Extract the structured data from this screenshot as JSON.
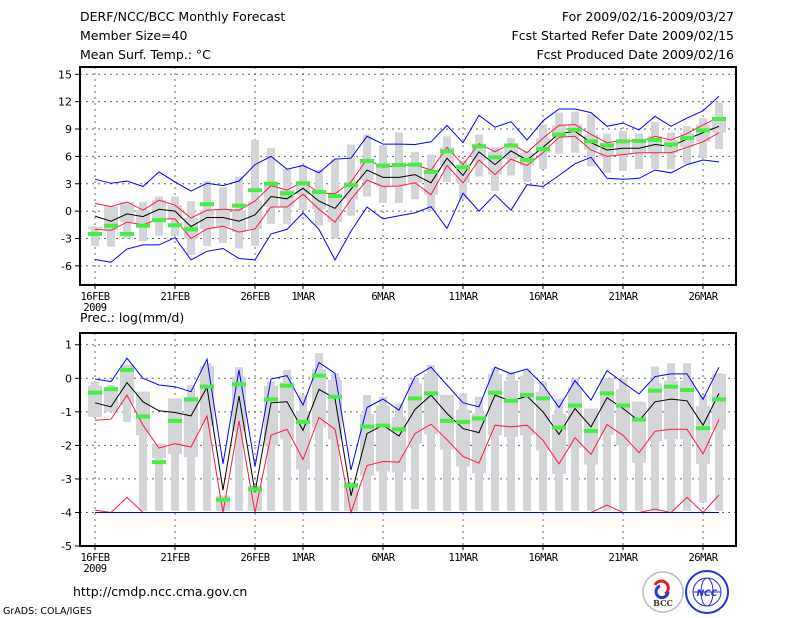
{
  "header": {
    "title": "DERF/NCC/BCC Monthly Forecast",
    "member_size": "Member Size=40",
    "variable": "Mean Surf. Temp.: °C",
    "period": "For 2009/02/16-2009/03/27",
    "start_date": "Fcst Started Refer Date 2009/02/15",
    "produced_date": "Fcst Produced Date 2009/02/16"
  },
  "footer": {
    "url": "http://cmdp.ncc.cma.gov.cn",
    "credit": "GrADS: COLA/IGES",
    "logos": [
      "BCC",
      "NCC"
    ]
  },
  "colors": {
    "max_min": "#0000ff",
    "spread": "#ff1a40",
    "mean": "#000000",
    "observed": "#44ee44",
    "ensemble": "#d4d5d9"
  },
  "chart_data": [
    {
      "type": "line",
      "title": "Mean Surf. Temp.: °C",
      "xlabel": "",
      "ylabel": "",
      "ylim": [
        -8.1,
        15.8
      ],
      "yticks": [
        "-6",
        "-3",
        "0",
        "3",
        "6",
        "9",
        "12",
        "15"
      ],
      "xtick_days": [
        0,
        5,
        10,
        13,
        18,
        23,
        28,
        33,
        38
      ],
      "xtick_labels": [
        "16FEB",
        "21FEB",
        "26FEB",
        "1MAR",
        "6MAR",
        "11MAR",
        "16MAR",
        "21MAR",
        "26MAR"
      ],
      "xtick_year": "2009",
      "grid": true,
      "series": [
        {
          "name": "max",
          "color": "#0000ff",
          "values": [
            3.5,
            3.05,
            3.3,
            2.7,
            4.3,
            3.2,
            2.2,
            3.05,
            2.8,
            3.3,
            5.1,
            6.0,
            4.6,
            5.0,
            4.2,
            5.7,
            5.8,
            8.2,
            7.35,
            7.35,
            7.3,
            7.6,
            9.4,
            7.5,
            10.5,
            9.2,
            9.8,
            7.8,
            9.9,
            11.2,
            11.2,
            10.8,
            9.3,
            9.65,
            8.9,
            10.4,
            9.3,
            10.2,
            11.0,
            12.6
          ]
        },
        {
          "name": "upper",
          "color": "#ff1a40",
          "values": [
            0.85,
            0.5,
            1.0,
            0.1,
            1.2,
            0.65,
            -0.75,
            0.1,
            0.2,
            0.1,
            1.1,
            2.8,
            2.3,
            3.2,
            2.0,
            1.9,
            3.2,
            5.7,
            4.8,
            5.0,
            5.1,
            4.5,
            7.0,
            5.1,
            7.4,
            6.5,
            7.4,
            6.4,
            8.0,
            9.4,
            9.5,
            8.4,
            7.5,
            7.8,
            7.6,
            8.2,
            7.8,
            8.5,
            9.45,
            10.3
          ]
        },
        {
          "name": "mean",
          "color": "#000000",
          "values": [
            -0.55,
            -1.1,
            -0.3,
            -0.6,
            0.2,
            0.0,
            -1.7,
            -0.7,
            -0.7,
            -1.1,
            -0.4,
            1.6,
            1.35,
            2.5,
            1.1,
            0.3,
            2.4,
            4.5,
            3.7,
            3.7,
            4.0,
            3.1,
            5.8,
            3.9,
            6.5,
            5.1,
            6.6,
            5.6,
            7.0,
            8.5,
            8.75,
            7.5,
            6.7,
            6.9,
            6.9,
            7.3,
            7.1,
            7.9,
            8.6,
            9.3
          ]
        },
        {
          "name": "lower",
          "color": "#ff1a40",
          "values": [
            -2.0,
            -2.1,
            -1.2,
            -1.5,
            -0.85,
            -0.85,
            -3.0,
            -1.95,
            -1.65,
            -2.3,
            -1.95,
            0.45,
            0.45,
            1.85,
            0.2,
            -1.2,
            1.3,
            3.4,
            2.7,
            2.75,
            3.1,
            1.8,
            5.0,
            3.1,
            5.6,
            4.0,
            5.7,
            5.0,
            6.4,
            8.1,
            8.2,
            6.7,
            6.0,
            6.2,
            6.4,
            6.4,
            6.4,
            7.0,
            7.6,
            8.6
          ]
        },
        {
          "name": "min",
          "color": "#0000ff",
          "values": [
            -5.3,
            -5.6,
            -4.15,
            -3.7,
            -3.7,
            -2.9,
            -5.35,
            -4.4,
            -4.1,
            -5.2,
            -5.35,
            -2.5,
            -2.0,
            -0.2,
            -2.0,
            -5.35,
            -2.2,
            0.45,
            -0.85,
            -0.5,
            -0.2,
            0.5,
            -1.9,
            1.95,
            0.0,
            1.8,
            0.1,
            2.9,
            2.7,
            3.9,
            5.2,
            5.9,
            3.6,
            3.5,
            3.6,
            4.5,
            4.2,
            5.1,
            5.6,
            5.4
          ]
        },
        {
          "name": "observed",
          "color": "#44ee44",
          "values": [
            -2.5,
            -1.6,
            -2.5,
            -1.6,
            -1.0,
            -1.55,
            -2.0,
            0.75,
            null,
            0.6,
            2.3,
            3.0,
            1.95,
            3.05,
            2.1,
            1.65,
            2.85,
            5.5,
            5.0,
            5.05,
            5.1,
            4.3,
            6.55,
            4.8,
            7.1,
            5.9,
            7.2,
            5.6,
            6.8,
            8.4,
            8.9,
            7.65,
            7.2,
            7.65,
            7.7,
            7.8,
            7.3,
            8.0,
            8.85,
            10.1
          ]
        }
      ],
      "ensemble_range": {
        "low": [
          -3.8,
          -3.9,
          -3.0,
          -3.3,
          -2.7,
          -2.7,
          -4.8,
          -3.8,
          -3.5,
          -4.1,
          -3.8,
          -1.4,
          -1.4,
          0.1,
          -1.6,
          -3.0,
          -0.5,
          1.6,
          0.9,
          0.9,
          1.3,
          0.0,
          3.2,
          1.3,
          3.8,
          2.2,
          3.9,
          3.2,
          4.6,
          6.3,
          6.4,
          4.9,
          4.2,
          4.4,
          4.6,
          4.6,
          4.6,
          5.2,
          5.8,
          6.8
        ],
        "high": [
          -1.7,
          0.5,
          1.0,
          1.0,
          1.6,
          1.6,
          1.1,
          3.3,
          2.6,
          3.8,
          7.8,
          6.9,
          4.6,
          5.1,
          4.5,
          5.6,
          7.3,
          8.4,
          7.2,
          8.6,
          6.5,
          6.2,
          8.2,
          5.5,
          8.4,
          7.0,
          8.0,
          6.6,
          9.5,
          10.8,
          10.9,
          10.6,
          8.5,
          8.8,
          8.5,
          9.8,
          8.6,
          9.3,
          10.2,
          11.9
        ]
      }
    },
    {
      "type": "line",
      "title": "Prec.: log(mm/d)",
      "xlabel": "",
      "ylabel": "",
      "ylim": [
        -5,
        1.35
      ],
      "yticks": [
        "-5",
        "-4",
        "-3",
        "-2",
        "-1",
        "0",
        "1"
      ],
      "xtick_days": [
        0,
        5,
        10,
        13,
        18,
        23,
        28,
        33,
        38
      ],
      "xtick_labels": [
        "16FEB",
        "21FEB",
        "26FEB",
        "1MAR",
        "6MAR",
        "11MAR",
        "16MAR",
        "21MAR",
        "26MAR"
      ],
      "xtick_year": "2009",
      "grid": true,
      "series": [
        {
          "name": "max",
          "color": "#0000ff",
          "values": [
            -0.02,
            -0.1,
            0.6,
            0.0,
            -0.2,
            -0.25,
            -0.4,
            0.57,
            -2.55,
            0.25,
            -2.63,
            -0.02,
            0.08,
            -0.8,
            0.47,
            0.15,
            -2.73,
            -0.87,
            -0.62,
            -0.95,
            0.05,
            0.33,
            -0.2,
            -0.73,
            -0.85,
            0.33,
            0.13,
            0.28,
            -0.2,
            -0.87,
            -0.07,
            -0.65,
            0.23,
            -0.13,
            -0.47,
            0.05,
            0.13,
            0.13,
            -0.63,
            0.33
          ]
        },
        {
          "name": "mean",
          "color": "#000000",
          "values": [
            -0.73,
            -0.85,
            -0.13,
            -0.7,
            -0.97,
            -1.02,
            -1.12,
            -0.27,
            -3.33,
            -0.53,
            -3.4,
            -0.73,
            -0.7,
            -1.55,
            -0.33,
            -0.6,
            -3.5,
            -1.65,
            -1.4,
            -1.72,
            -0.93,
            -0.5,
            -1.05,
            -1.5,
            -1.62,
            -0.5,
            -0.68,
            -0.53,
            -1.0,
            -1.67,
            -0.9,
            -1.45,
            -0.58,
            -0.9,
            -1.27,
            -0.7,
            -0.62,
            -0.67,
            -1.4,
            -0.45
          ]
        },
        {
          "name": "upper-red",
          "color": "#ff1a40",
          "values": [
            -1.25,
            -1.22,
            -0.5,
            -1.4,
            -2.08,
            -1.95,
            -2.05,
            -1.12,
            -4.0,
            -1.27,
            -4.0,
            -1.7,
            -1.52,
            -2.42,
            -1.17,
            -1.52,
            -4.0,
            -2.6,
            -2.48,
            -2.5,
            -1.65,
            -1.37,
            -1.83,
            -2.33,
            -2.53,
            -1.4,
            -1.45,
            -1.4,
            -1.85,
            -2.55,
            -1.77,
            -2.27,
            -1.38,
            -1.7,
            -2.22,
            -1.58,
            -1.52,
            -1.52,
            -2.25,
            -1.23
          ]
        },
        {
          "name": "lower-red",
          "color": "#ff1a40",
          "values": [
            -3.93,
            -4.0,
            -3.55,
            -4.0,
            -4.0,
            -4.0,
            -4.0,
            -4.0,
            -4.0,
            -4.0,
            -4.0,
            -4.0,
            -4.0,
            -4.0,
            -4.0,
            -4.0,
            -4.0,
            -4.0,
            -4.0,
            -4.0,
            -4.0,
            -4.0,
            -4.0,
            -4.0,
            -4.0,
            -4.0,
            -4.0,
            -4.0,
            -4.0,
            -4.0,
            -4.0,
            -4.0,
            -3.78,
            -4.0,
            -4.0,
            -3.9,
            -4.0,
            -3.55,
            -4.0,
            -3.48
          ]
        },
        {
          "name": "min",
          "color": "#0000ff",
          "values": [
            -4,
            -4,
            -4,
            -4,
            -4,
            -4,
            -4,
            -4,
            -4,
            -4,
            -4,
            -4,
            -4,
            -4,
            -4,
            -4,
            -4,
            -4,
            -4,
            -4,
            -4,
            -4,
            -4,
            -4,
            -4,
            -4,
            -4,
            -4,
            -4,
            -4,
            -4,
            -4,
            -4,
            -4,
            -4,
            -4,
            -4,
            -4,
            -4,
            -4
          ]
        },
        {
          "name": "observed",
          "color": "#44ee44",
          "values": [
            -0.43,
            -0.32,
            0.25,
            -1.14,
            -2.5,
            -1.27,
            -0.63,
            -0.25,
            -3.62,
            -0.18,
            -3.31,
            -0.63,
            -0.22,
            -1.3,
            0.08,
            -0.55,
            -3.2,
            -1.44,
            -1.41,
            -1.52,
            -0.6,
            -0.45,
            -1.27,
            -1.3,
            -1.2,
            -0.43,
            -0.67,
            -0.5,
            -0.6,
            -1.47,
            -0.81,
            -1.57,
            -0.45,
            -0.81,
            -1.23,
            -0.37,
            -0.25,
            -0.35,
            -1.49,
            -0.63
          ]
        }
      ],
      "ensemble_range": {
        "low": [
          -1.15,
          -1.0,
          -1.3,
          -3.95,
          -3.95,
          -3.95,
          -3.95,
          -3.95,
          -3.95,
          -3.95,
          -3.95,
          -3.95,
          -3.95,
          -3.95,
          -3.95,
          -3.95,
          -3.95,
          -3.95,
          -3.95,
          -3.95,
          -3.9,
          -3.95,
          -3.95,
          -3.95,
          -3.95,
          -3.95,
          -3.95,
          -3.95,
          -3.95,
          -3.95,
          -3.95,
          -3.95,
          -3.95,
          -3.95,
          -3.95,
          -3.95,
          -3.95,
          -3.95,
          -3.7,
          -3.95
        ],
        "high": [
          -0.1,
          -0.2,
          0.4,
          -0.4,
          -1.95,
          -0.6,
          -0.2,
          0.45,
          -3.5,
          0.33,
          -3.2,
          -0.1,
          0.25,
          -0.5,
          0.75,
          0.15,
          -3.1,
          -0.5,
          -0.55,
          -0.75,
          0.0,
          0.4,
          -0.5,
          -0.45,
          -0.55,
          0.3,
          0.2,
          0.25,
          -0.1,
          -0.6,
          0.0,
          -0.9,
          0.0,
          0.0,
          -0.7,
          0.35,
          0.45,
          0.45,
          -0.5,
          0.15
        ]
      }
    }
  ]
}
